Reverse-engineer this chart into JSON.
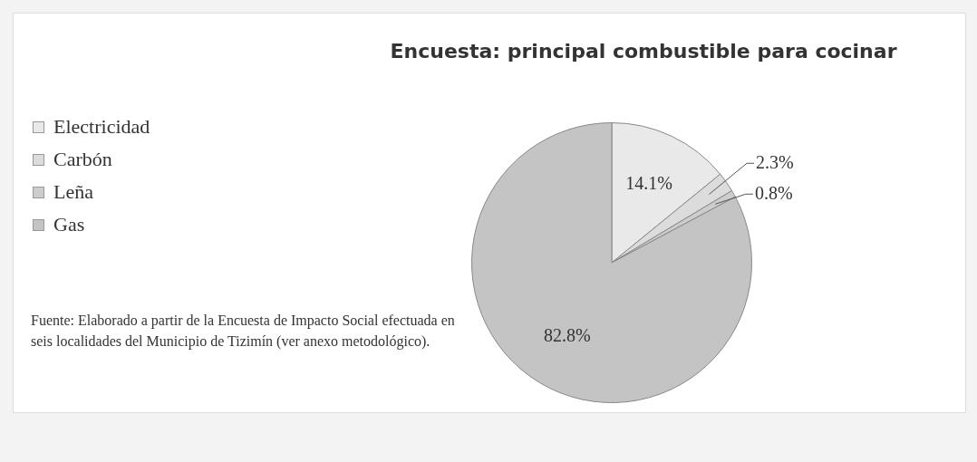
{
  "chart_data": {
    "type": "pie",
    "title": "Encuesta: principal combustible para cocinar",
    "categories": [
      "Electricidad",
      "Carbón",
      "Leña",
      "Gas"
    ],
    "values": [
      14.1,
      2.3,
      0.8,
      82.8
    ],
    "value_labels": [
      "14.1%",
      "2.3%",
      "0.8%",
      "82.8%"
    ],
    "colors": [
      "#e9e9e9",
      "#dcdcdc",
      "#cdcdcd",
      "#c4c4c4"
    ],
    "legend": "left",
    "annotations": [
      "Fuente: Elaborado a partir de la Encuesta de Impacto Social efectuada en seis localidades del Municipio de Tizimín (ver anexo metodológico)."
    ]
  }
}
